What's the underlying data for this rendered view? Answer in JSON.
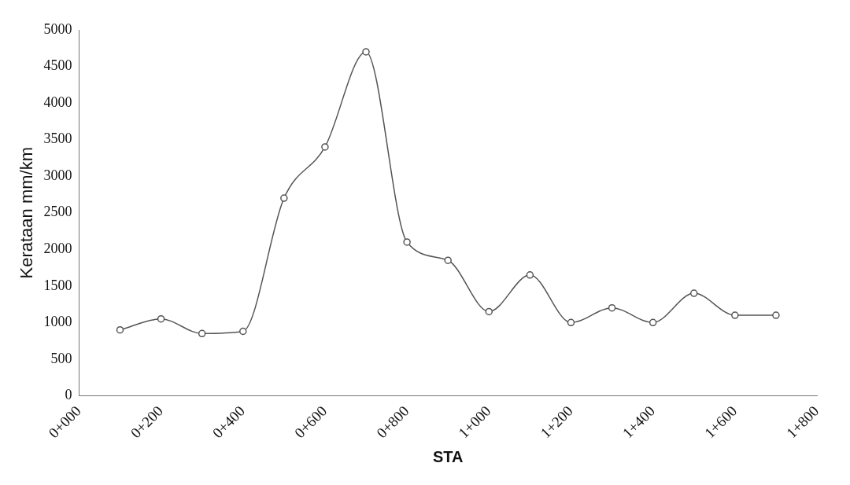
{
  "chart_data": {
    "type": "line",
    "xlabel": "STA",
    "ylabel": "Kerataan mm/km",
    "categories": [
      "0+000",
      null,
      "0+200",
      null,
      "0+400",
      null,
      "0+600",
      null,
      "0+800",
      null,
      "1+000",
      null,
      "1+200",
      null,
      "1+400",
      null,
      "1+600",
      null,
      "1+800"
    ],
    "series": [
      {
        "color": "#555555",
        "values": [
          null,
          900,
          1050,
          850,
          880,
          2700,
          3400,
          4700,
          2100,
          1850,
          1150,
          1650,
          1000,
          1200,
          1000,
          1400,
          1100,
          1100,
          null
        ]
      }
    ],
    "ylim": [
      0,
      5000
    ],
    "yticks": [
      0,
      500,
      1000,
      1500,
      2000,
      2500,
      3000,
      3500,
      4000,
      4500,
      5000
    ],
    "grid": false,
    "legend": false,
    "marker": "circle",
    "line_style": "solid"
  }
}
